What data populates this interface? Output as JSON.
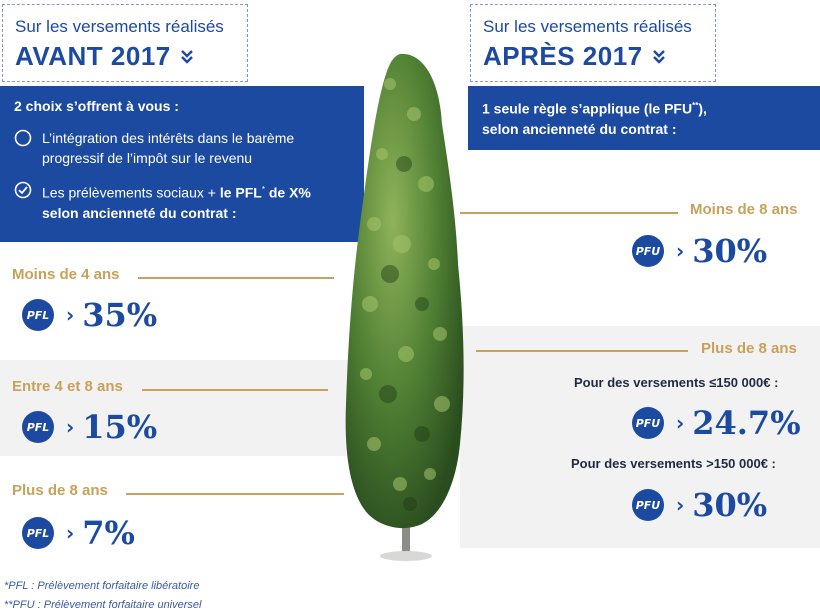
{
  "left": {
    "header": {
      "subtitle": "Sur les versements réalisés",
      "title": "AVANT 2017"
    },
    "panel": {
      "title": "2 choix s’offrent à vous :",
      "option1": "L’intégration des intérêts dans le barème progressif de l’impôt sur le revenu",
      "option2_prefix": "Les prélèvements sociaux + ",
      "option2_bold": "le PFL",
      "option2_sup": "*",
      "option2_suffix": " de X%",
      "option2_line2": "selon ancienneté du contrat :"
    },
    "rows": [
      {
        "label": "Moins de 4 ans",
        "badge": "PFL",
        "rate": "35%"
      },
      {
        "label": "Entre 4 et 8 ans",
        "badge": "PFL",
        "rate": "15%"
      },
      {
        "label": "Plus de 8 ans",
        "badge": "PFL",
        "rate": "7%"
      }
    ]
  },
  "right": {
    "header": {
      "subtitle": "Sur les versements réalisés",
      "title": "APRÈS 2017"
    },
    "panel": {
      "line1_prefix": "1 seule règle s’applique (le PFU",
      "line1_sup": "**",
      "line1_suffix": "),",
      "line2": "selon ancienneté du contrat :"
    },
    "row1": {
      "label": "Moins de 8 ans",
      "badge": "PFU",
      "rate": "30%"
    },
    "row2": {
      "label": "Plus de 8 ans",
      "sub1": {
        "text": "Pour des versements ≤150 000€ :",
        "badge": "PFU",
        "rate": "24.7%"
      },
      "sub2": {
        "text": "Pour des versements >150 000€ :",
        "badge": "PFU",
        "rate": "30%"
      }
    }
  },
  "footnotes": {
    "pfl": "*PFL : Prélèvement forfaitaire libératoire",
    "pfu": "**PFU : Prélèvement forfaitaire universel"
  },
  "colors": {
    "blue": "#1c4aa0",
    "gold": "#c8a15a",
    "band": "#f2f2f2"
  },
  "icons": {
    "chevron": "double-chevron-down-icon",
    "empty_circle": "circle-icon",
    "check_circle": "check-circle-icon",
    "tree": "tree-illustration"
  }
}
